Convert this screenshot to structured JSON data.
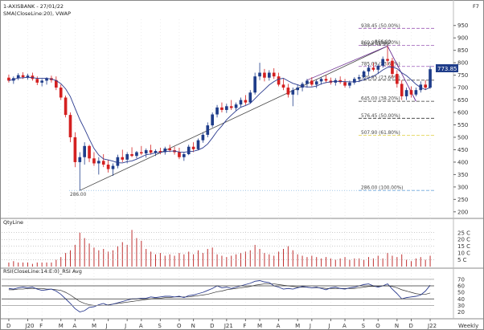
{
  "header": {
    "symbol_line": "1-AXISBANK - 27/01/22",
    "indicator_line": "SMA(CloseLine:20), VWAP",
    "corner": "F7"
  },
  "price_panel": {
    "y_ticks": [
      "950",
      "900",
      "850",
      "800",
      "750",
      "700",
      "650",
      "600",
      "550",
      "500",
      "450",
      "400",
      "350",
      "300",
      "250",
      "200"
    ],
    "last_price": "773.85",
    "low_label": "286.00",
    "slope_label": "Slope 46.99",
    "peak_label": "866.90",
    "fib_levels": [
      {
        "label": "938.45 (50.00%)",
        "value": 938.45,
        "color": "#9b59b6"
      },
      {
        "label": "869.90 (38.20%)",
        "value": 869.9,
        "color": "#9b59b6"
      },
      {
        "label": "785.09 (23.60%)",
        "value": 785.09,
        "color": "#9b59b6"
      },
      {
        "label": "729.85 (23.60%)",
        "value": 729.85,
        "color": "#333333"
      },
      {
        "label": "645.00 (38.20%)",
        "value": 645.0,
        "color": "#333333"
      },
      {
        "label": "576.45 (50.00%)",
        "value": 576.45,
        "color": "#333333"
      },
      {
        "label": "507.90 (61.80%)",
        "value": 507.9,
        "color": "#e0d040"
      },
      {
        "label": "286.00 (100.00%)",
        "value": 286.0,
        "color": "#6fa8dc"
      }
    ]
  },
  "volume_panel": {
    "title": "QtyLine",
    "y_ticks": [
      "25 C",
      "20 C",
      "15 C",
      "10 C",
      "5 C"
    ]
  },
  "rsi_panel": {
    "title": "RSI(CloseLine:14:E:0)_RSI Avg",
    "y_ticks": [
      "70",
      "60",
      "50",
      "40",
      "30",
      "20"
    ]
  },
  "x_axis": {
    "labels": [
      "D",
      "J20",
      "F",
      "M",
      "A",
      "M",
      "J",
      "J",
      "A",
      "S",
      "O",
      "N",
      "D",
      "J21",
      "F",
      "M",
      "A",
      "M",
      "J",
      "J",
      "A",
      "S",
      "O",
      "N",
      "D",
      "J22"
    ],
    "period": "Weekly"
  },
  "colors": {
    "up": "#1f3d8a",
    "down": "#d42020",
    "sma": "#2b3b8f",
    "vwap": "#222222",
    "volume": "#c03030",
    "rsi": "#2b3b8f"
  },
  "chart_data": {
    "type": "candlestick",
    "title": "1-AXISBANK - 27/01/22",
    "period": "Weekly",
    "price_ylim": [
      180,
      975
    ],
    "candles": [
      {
        "o": 740,
        "h": 752,
        "l": 720,
        "c": 728
      },
      {
        "o": 728,
        "h": 745,
        "l": 715,
        "c": 738
      },
      {
        "o": 738,
        "h": 758,
        "l": 730,
        "c": 750
      },
      {
        "o": 750,
        "h": 762,
        "l": 735,
        "c": 742
      },
      {
        "o": 742,
        "h": 756,
        "l": 732,
        "c": 748
      },
      {
        "o": 748,
        "h": 760,
        "l": 728,
        "c": 735
      },
      {
        "o": 735,
        "h": 745,
        "l": 710,
        "c": 720
      },
      {
        "o": 720,
        "h": 735,
        "l": 705,
        "c": 728
      },
      {
        "o": 728,
        "h": 742,
        "l": 712,
        "c": 738
      },
      {
        "o": 738,
        "h": 748,
        "l": 720,
        "c": 730
      },
      {
        "o": 730,
        "h": 745,
        "l": 690,
        "c": 700
      },
      {
        "o": 700,
        "h": 712,
        "l": 650,
        "c": 660
      },
      {
        "o": 660,
        "h": 668,
        "l": 580,
        "c": 590
      },
      {
        "o": 590,
        "h": 600,
        "l": 480,
        "c": 500
      },
      {
        "o": 500,
        "h": 520,
        "l": 380,
        "c": 400
      },
      {
        "o": 400,
        "h": 440,
        "l": 286,
        "c": 420
      },
      {
        "o": 420,
        "h": 480,
        "l": 390,
        "c": 465
      },
      {
        "o": 465,
        "h": 470,
        "l": 400,
        "c": 415
      },
      {
        "o": 415,
        "h": 440,
        "l": 385,
        "c": 395
      },
      {
        "o": 395,
        "h": 420,
        "l": 350,
        "c": 405
      },
      {
        "o": 405,
        "h": 432,
        "l": 380,
        "c": 390
      },
      {
        "o": 390,
        "h": 410,
        "l": 358,
        "c": 372
      },
      {
        "o": 372,
        "h": 395,
        "l": 345,
        "c": 385
      },
      {
        "o": 385,
        "h": 430,
        "l": 375,
        "c": 420
      },
      {
        "o": 420,
        "h": 450,
        "l": 400,
        "c": 410
      },
      {
        "o": 410,
        "h": 440,
        "l": 395,
        "c": 432
      },
      {
        "o": 432,
        "h": 460,
        "l": 420,
        "c": 425
      },
      {
        "o": 425,
        "h": 445,
        "l": 415,
        "c": 440
      },
      {
        "o": 440,
        "h": 465,
        "l": 428,
        "c": 435
      },
      {
        "o": 435,
        "h": 455,
        "l": 418,
        "c": 448
      },
      {
        "o": 448,
        "h": 470,
        "l": 430,
        "c": 438
      },
      {
        "o": 438,
        "h": 452,
        "l": 425,
        "c": 445
      },
      {
        "o": 445,
        "h": 458,
        "l": 432,
        "c": 440
      },
      {
        "o": 440,
        "h": 462,
        "l": 430,
        "c": 455
      },
      {
        "o": 455,
        "h": 470,
        "l": 440,
        "c": 448
      },
      {
        "o": 448,
        "h": 462,
        "l": 430,
        "c": 440
      },
      {
        "o": 440,
        "h": 458,
        "l": 412,
        "c": 420
      },
      {
        "o": 420,
        "h": 440,
        "l": 405,
        "c": 432
      },
      {
        "o": 432,
        "h": 470,
        "l": 428,
        "c": 462
      },
      {
        "o": 462,
        "h": 480,
        "l": 440,
        "c": 452
      },
      {
        "o": 452,
        "h": 495,
        "l": 448,
        "c": 488
      },
      {
        "o": 488,
        "h": 520,
        "l": 478,
        "c": 510
      },
      {
        "o": 510,
        "h": 560,
        "l": 500,
        "c": 548
      },
      {
        "o": 548,
        "h": 600,
        "l": 540,
        "c": 592
      },
      {
        "o": 592,
        "h": 630,
        "l": 580,
        "c": 620
      },
      {
        "o": 620,
        "h": 640,
        "l": 600,
        "c": 610
      },
      {
        "o": 610,
        "h": 635,
        "l": 598,
        "c": 625
      },
      {
        "o": 625,
        "h": 650,
        "l": 610,
        "c": 618
      },
      {
        "o": 618,
        "h": 640,
        "l": 605,
        "c": 632
      },
      {
        "o": 632,
        "h": 660,
        "l": 620,
        "c": 650
      },
      {
        "o": 650,
        "h": 670,
        "l": 630,
        "c": 640
      },
      {
        "o": 640,
        "h": 690,
        "l": 635,
        "c": 680
      },
      {
        "o": 680,
        "h": 760,
        "l": 672,
        "c": 745
      },
      {
        "o": 745,
        "h": 800,
        "l": 730,
        "c": 760
      },
      {
        "o": 760,
        "h": 775,
        "l": 725,
        "c": 740
      },
      {
        "o": 740,
        "h": 770,
        "l": 728,
        "c": 760
      },
      {
        "o": 760,
        "h": 778,
        "l": 735,
        "c": 745
      },
      {
        "o": 745,
        "h": 760,
        "l": 705,
        "c": 712
      },
      {
        "o": 712,
        "h": 735,
        "l": 690,
        "c": 700
      },
      {
        "o": 700,
        "h": 715,
        "l": 660,
        "c": 672
      },
      {
        "o": 672,
        "h": 700,
        "l": 625,
        "c": 690
      },
      {
        "o": 690,
        "h": 712,
        "l": 670,
        "c": 700
      },
      {
        "o": 700,
        "h": 722,
        "l": 685,
        "c": 715
      },
      {
        "o": 715,
        "h": 735,
        "l": 700,
        "c": 728
      },
      {
        "o": 728,
        "h": 742,
        "l": 705,
        "c": 712
      },
      {
        "o": 712,
        "h": 732,
        "l": 698,
        "c": 725
      },
      {
        "o": 725,
        "h": 742,
        "l": 712,
        "c": 735
      },
      {
        "o": 735,
        "h": 750,
        "l": 718,
        "c": 728
      },
      {
        "o": 728,
        "h": 740,
        "l": 712,
        "c": 720
      },
      {
        "o": 720,
        "h": 738,
        "l": 708,
        "c": 730
      },
      {
        "o": 730,
        "h": 745,
        "l": 715,
        "c": 722
      },
      {
        "o": 722,
        "h": 735,
        "l": 700,
        "c": 708
      },
      {
        "o": 708,
        "h": 728,
        "l": 698,
        "c": 720
      },
      {
        "o": 720,
        "h": 742,
        "l": 712,
        "c": 735
      },
      {
        "o": 735,
        "h": 752,
        "l": 722,
        "c": 742
      },
      {
        "o": 742,
        "h": 770,
        "l": 735,
        "c": 765
      },
      {
        "o": 765,
        "h": 790,
        "l": 750,
        "c": 780
      },
      {
        "o": 780,
        "h": 800,
        "l": 765,
        "c": 772
      },
      {
        "o": 772,
        "h": 795,
        "l": 755,
        "c": 788
      },
      {
        "o": 788,
        "h": 825,
        "l": 780,
        "c": 815
      },
      {
        "o": 815,
        "h": 867,
        "l": 790,
        "c": 808
      },
      {
        "o": 808,
        "h": 820,
        "l": 740,
        "c": 755
      },
      {
        "o": 755,
        "h": 770,
        "l": 700,
        "c": 715
      },
      {
        "o": 715,
        "h": 730,
        "l": 650,
        "c": 665
      },
      {
        "o": 665,
        "h": 700,
        "l": 650,
        "c": 690
      },
      {
        "o": 690,
        "h": 705,
        "l": 660,
        "c": 672
      },
      {
        "o": 672,
        "h": 700,
        "l": 665,
        "c": 690
      },
      {
        "o": 690,
        "h": 725,
        "l": 680,
        "c": 712
      },
      {
        "o": 712,
        "h": 730,
        "l": 690,
        "c": 700
      },
      {
        "o": 700,
        "h": 788,
        "l": 695,
        "c": 774
      }
    ],
    "volume_ylim": [
      0,
      29
    ],
    "volume": [
      3,
      4,
      3,
      3,
      3,
      2,
      3,
      3,
      3,
      3,
      5,
      7,
      10,
      12,
      16,
      25,
      21,
      17,
      14,
      12,
      13,
      11,
      12,
      15,
      18,
      16,
      27,
      21,
      19,
      13,
      11,
      9,
      10,
      8,
      9,
      8,
      10,
      9,
      11,
      9,
      12,
      10,
      13,
      14,
      9,
      8,
      7,
      8,
      9,
      10,
      11,
      12,
      16,
      13,
      10,
      9,
      8,
      11,
      13,
      15,
      12,
      9,
      8,
      7,
      8,
      7,
      6,
      7,
      6,
      5,
      6,
      7,
      5,
      6,
      6,
      5,
      7,
      6,
      8,
      6,
      10,
      8,
      7,
      9,
      5,
      4,
      6,
      7,
      5,
      8
    ],
    "rsi_ylim": [
      12,
      76
    ],
    "rsi": [
      56,
      55,
      57,
      58,
      57,
      58,
      55,
      53,
      54,
      55,
      52,
      47,
      40,
      33,
      25,
      20,
      22,
      27,
      28,
      31,
      33,
      30,
      32,
      34,
      36,
      38,
      40,
      40,
      41,
      41,
      43,
      42,
      43,
      44,
      44,
      43,
      44,
      42,
      45,
      46,
      48,
      50,
      53,
      56,
      60,
      57,
      58,
      56,
      58,
      60,
      62,
      64,
      67,
      68,
      66,
      65,
      60,
      58,
      55,
      56,
      55,
      57,
      59,
      58,
      57,
      58,
      56,
      54,
      57,
      58,
      56,
      55,
      57,
      58,
      60,
      62,
      63,
      60,
      58,
      60,
      63,
      55,
      48,
      40,
      42,
      43,
      44,
      46,
      52,
      61
    ],
    "rsi_avg": [
      54,
      54,
      55,
      55,
      56,
      56,
      56,
      56,
      55,
      55,
      54,
      53,
      50,
      46,
      41,
      36,
      33,
      31,
      30,
      30,
      30,
      31,
      32,
      33,
      34,
      35,
      36,
      37,
      38,
      39,
      40,
      41,
      41,
      42,
      42,
      43,
      43,
      43,
      43,
      44,
      45,
      46,
      47,
      49,
      51,
      52,
      54,
      55,
      56,
      57,
      58,
      59,
      61,
      62,
      63,
      63,
      63,
      62,
      61,
      60,
      59,
      58,
      58,
      58,
      57,
      57,
      57,
      56,
      56,
      56,
      56,
      56,
      56,
      56,
      57,
      58,
      59,
      59,
      59,
      60,
      60,
      59,
      57,
      54,
      52,
      50,
      48,
      47,
      47,
      49
    ]
  }
}
